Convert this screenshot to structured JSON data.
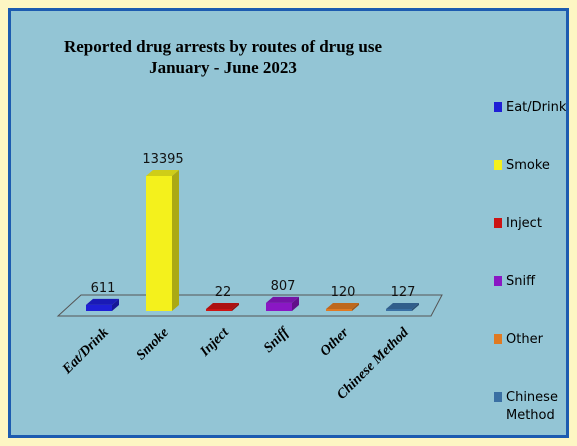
{
  "chart_data": {
    "type": "bar",
    "title": "Reported drug arrests by routes of drug use",
    "subtitle": "January - June 2023",
    "categories": [
      "Eat/Drink",
      "Smoke",
      "Inject",
      "Sniff",
      "Other",
      "Chinese Method"
    ],
    "values": [
      611,
      13395,
      22,
      807,
      120,
      127
    ],
    "colors": [
      "#1f1fd6",
      "#f4f11c",
      "#cc1414",
      "#8a17c4",
      "#e07a22",
      "#3a6fa3"
    ],
    "legend": {
      "position": "right",
      "entries": [
        "Eat/Drink",
        "Smoke",
        "Inject",
        "Sniff",
        "Other",
        "Chinese Method"
      ]
    },
    "grid": false,
    "style": "3d-column"
  }
}
